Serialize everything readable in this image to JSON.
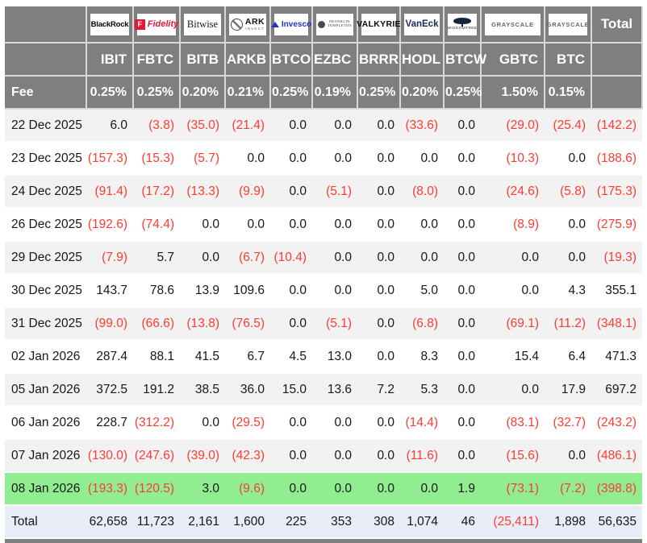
{
  "table": {
    "fee_label": "Fee",
    "total_row_label": "Total",
    "total_column_label": "Total",
    "columns": [
      {
        "ticker": "IBIT",
        "fee": "0.25%",
        "provider": "BlackRock",
        "logo_style": "blackrock",
        "logo_lines": [
          "BlackRock"
        ]
      },
      {
        "ticker": "FBTC",
        "fee": "0.25%",
        "provider": "Fidelity",
        "logo_style": "fidelity",
        "logo_lines": [
          "Fidelity"
        ]
      },
      {
        "ticker": "BITB",
        "fee": "0.20%",
        "provider": "Bitwise",
        "logo_style": "bitwise",
        "logo_lines": [
          "Bitwise"
        ]
      },
      {
        "ticker": "ARKB",
        "fee": "0.21%",
        "provider": "ARK Invest",
        "logo_style": "ark",
        "logo_lines": [
          "ARK",
          "INVEST"
        ]
      },
      {
        "ticker": "BTCO",
        "fee": "0.25%",
        "provider": "Invesco",
        "logo_style": "invesco",
        "logo_lines": [
          "Invesco"
        ]
      },
      {
        "ticker": "EZBC",
        "fee": "0.19%",
        "provider": "Franklin Templeton",
        "logo_style": "franklin",
        "logo_lines": [
          "FRANKLIN",
          "TEMPLETON"
        ]
      },
      {
        "ticker": "BRRR",
        "fee": "0.25%",
        "provider": "Valkyrie",
        "logo_style": "valkyrie",
        "logo_lines": [
          "VALKYRIE"
        ]
      },
      {
        "ticker": "HODL",
        "fee": "0.20%",
        "provider": "VanEck",
        "logo_style": "vaneck",
        "logo_lines": [
          "VanEck"
        ]
      },
      {
        "ticker": "BTCW",
        "fee": "0.25%",
        "provider": "WisdomTree",
        "logo_style": "wisdomtree",
        "logo_lines": [
          "WISDOMTREE"
        ]
      },
      {
        "ticker": "GBTC",
        "fee": "1.50%",
        "provider": "Grayscale",
        "logo_style": "grayscale",
        "logo_lines": [
          "GRAYSCALE"
        ]
      },
      {
        "ticker": "BTC",
        "fee": "0.15%",
        "provider": "Grayscale",
        "logo_style": "grayscale",
        "logo_lines": [
          "GRAYSCALE"
        ]
      }
    ],
    "rows": [
      {
        "date": "22 Dec 2025",
        "highlight": false,
        "values": [
          "6.0",
          "(3.8)",
          "(35.0)",
          "(21.4)",
          "0.0",
          "0.0",
          "0.0",
          "(33.6)",
          "0.0",
          "(29.0)",
          "(25.4)",
          "(142.2)"
        ]
      },
      {
        "date": "23 Dec 2025",
        "highlight": false,
        "values": [
          "(157.3)",
          "(15.3)",
          "(5.7)",
          "0.0",
          "0.0",
          "0.0",
          "0.0",
          "0.0",
          "0.0",
          "(10.3)",
          "0.0",
          "(188.6)"
        ]
      },
      {
        "date": "24 Dec 2025",
        "highlight": false,
        "values": [
          "(91.4)",
          "(17.2)",
          "(13.3)",
          "(9.9)",
          "0.0",
          "(5.1)",
          "0.0",
          "(8.0)",
          "0.0",
          "(24.6)",
          "(5.8)",
          "(175.3)"
        ]
      },
      {
        "date": "26 Dec 2025",
        "highlight": false,
        "values": [
          "(192.6)",
          "(74.4)",
          "0.0",
          "0.0",
          "0.0",
          "0.0",
          "0.0",
          "0.0",
          "0.0",
          "(8.9)",
          "0.0",
          "(275.9)"
        ]
      },
      {
        "date": "29 Dec 2025",
        "highlight": false,
        "values": [
          "(7.9)",
          "5.7",
          "0.0",
          "(6.7)",
          "(10.4)",
          "0.0",
          "0.0",
          "0.0",
          "0.0",
          "0.0",
          "0.0",
          "(19.3)"
        ]
      },
      {
        "date": "30 Dec 2025",
        "highlight": false,
        "values": [
          "143.7",
          "78.6",
          "13.9",
          "109.6",
          "0.0",
          "0.0",
          "0.0",
          "5.0",
          "0.0",
          "0.0",
          "4.3",
          "355.1"
        ]
      },
      {
        "date": "31 Dec 2025",
        "highlight": false,
        "values": [
          "(99.0)",
          "(66.6)",
          "(13.8)",
          "(76.5)",
          "0.0",
          "(5.1)",
          "0.0",
          "(6.8)",
          "0.0",
          "(69.1)",
          "(11.2)",
          "(348.1)"
        ]
      },
      {
        "date": "02 Jan 2026",
        "highlight": false,
        "values": [
          "287.4",
          "88.1",
          "41.5",
          "6.7",
          "4.5",
          "13.0",
          "0.0",
          "8.3",
          "0.0",
          "15.4",
          "6.4",
          "471.3"
        ]
      },
      {
        "date": "05 Jan 2026",
        "highlight": false,
        "values": [
          "372.5",
          "191.2",
          "38.5",
          "36.0",
          "15.0",
          "13.6",
          "7.2",
          "5.3",
          "0.0",
          "0.0",
          "17.9",
          "697.2"
        ]
      },
      {
        "date": "06 Jan 2026",
        "highlight": false,
        "values": [
          "228.7",
          "(312.2)",
          "0.0",
          "(29.5)",
          "0.0",
          "0.0",
          "0.0",
          "(14.4)",
          "0.0",
          "(83.1)",
          "(32.7)",
          "(243.2)"
        ]
      },
      {
        "date": "07 Jan 2026",
        "highlight": false,
        "values": [
          "(130.0)",
          "(247.6)",
          "(39.0)",
          "(42.3)",
          "0.0",
          "0.0",
          "0.0",
          "(11.6)",
          "0.0",
          "(15.6)",
          "0.0",
          "(486.1)"
        ]
      },
      {
        "date": "08 Jan 2026",
        "highlight": true,
        "values": [
          "(193.3)",
          "(120.5)",
          "3.0",
          "(9.6)",
          "0.0",
          "0.0",
          "0.0",
          "0.0",
          "1.9",
          "(73.1)",
          "(7.2)",
          "(398.8)"
        ]
      }
    ],
    "totals": [
      "62,658",
      "11,723",
      "2,161",
      "1,600",
      "225",
      "353",
      "308",
      "1,074",
      "46",
      "(25,411)",
      "1,898",
      "56,635"
    ]
  },
  "colors": {
    "header_bg": "#7f7f7f",
    "stripe_bg": "#f2f2f2",
    "highlight_bg": "#90ee90",
    "total_bg": "#e9edf7",
    "negative_text": "#ff3b30",
    "fidelity_red": "#e31837",
    "invesco_blue": "#2336c2",
    "vaneck_navy": "#1b2a5e"
  }
}
